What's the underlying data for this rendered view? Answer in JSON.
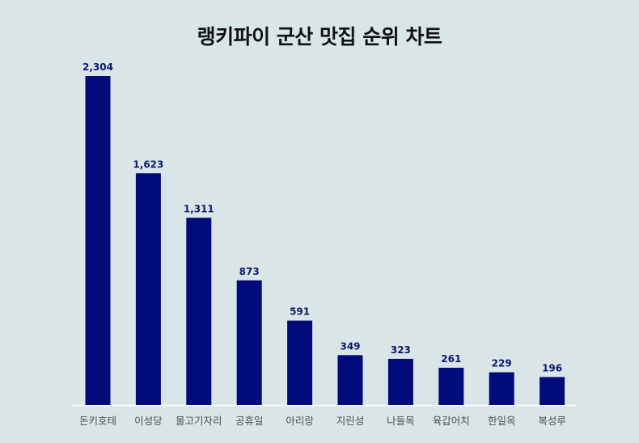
{
  "title": "랭키파이 군산 맛집 순위 차트",
  "colors": {
    "background": "#d9e5e6",
    "bar": "#020b7a",
    "value_label": "#0a1a6e",
    "axis_line": "#ffffff"
  },
  "chart_data": {
    "type": "bar",
    "title": "랭키파이 군산 맛집 순위 차트",
    "categories": [
      "돈키호테",
      "이성당",
      "몰고기자리",
      "공휴일",
      "아리랑",
      "지린성",
      "나들목",
      "육갑어치",
      "한일옥",
      "복성루"
    ],
    "values": [
      2304,
      1623,
      1311,
      873,
      591,
      349,
      323,
      261,
      229,
      196
    ],
    "value_labels": [
      "2,304",
      "1,623",
      "1,311",
      "873",
      "591",
      "349",
      "323",
      "261",
      "229",
      "196"
    ],
    "xlabel": "",
    "ylabel": "",
    "ylim": [
      0,
      2304
    ],
    "grid": false,
    "legend": "none"
  }
}
